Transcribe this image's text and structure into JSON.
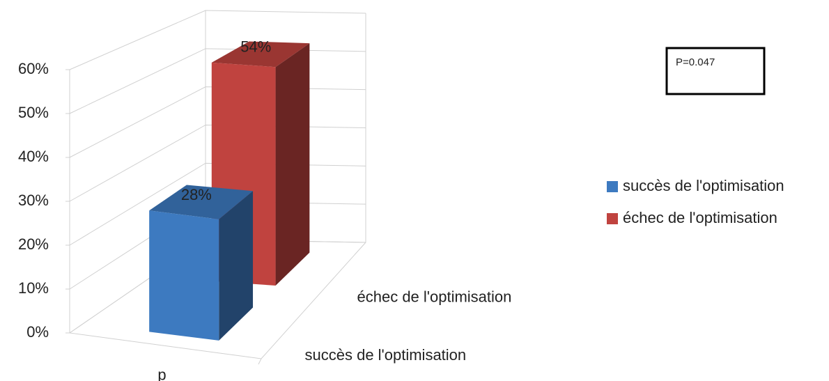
{
  "chart_data": {
    "type": "bar",
    "categories": [
      "p"
    ],
    "series": [
      {
        "name": "succès de l'optimisation",
        "color": "#3d7ac0",
        "values": [
          28
        ],
        "value_labels": [
          "28%"
        ]
      },
      {
        "name": "échec de l'optimisation",
        "color": "#c0433f",
        "values": [
          54
        ],
        "value_labels": [
          "54%"
        ]
      }
    ],
    "ylim": [
      0,
      60
    ],
    "yticks": [
      {
        "value": 0,
        "label": "0%"
      },
      {
        "value": 10,
        "label": "10%"
      },
      {
        "value": 20,
        "label": "20%"
      },
      {
        "value": 30,
        "label": "30%"
      },
      {
        "value": 40,
        "label": "40%"
      },
      {
        "value": 50,
        "label": "50%"
      },
      {
        "value": 60,
        "label": "60%"
      }
    ],
    "grid": true,
    "legend": "right",
    "annotations": [
      "P=0.047"
    ]
  }
}
